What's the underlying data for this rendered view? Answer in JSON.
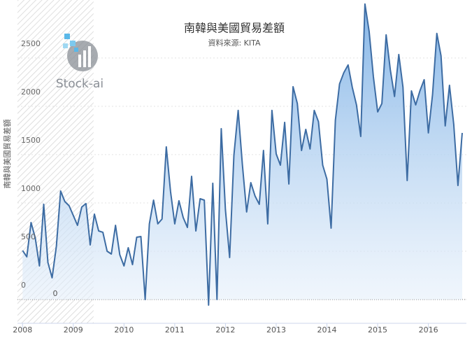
{
  "chart_data": {
    "type": "area",
    "title": "南韓與美國貿易差額",
    "subtitle": "資料來源: KITA",
    "y_axis_label": "南韓與美國貿易差額",
    "watermark": "Stock-ai",
    "x": [
      2008,
      2008.083,
      2008.167,
      2008.25,
      2008.333,
      2008.417,
      2008.5,
      2008.583,
      2008.667,
      2008.75,
      2008.833,
      2008.917,
      2009,
      2009.083,
      2009.167,
      2009.25,
      2009.333,
      2009.417,
      2009.5,
      2009.583,
      2009.667,
      2009.75,
      2009.833,
      2009.917,
      2010,
      2010.083,
      2010.167,
      2010.25,
      2010.333,
      2010.417,
      2010.5,
      2010.583,
      2010.667,
      2010.75,
      2010.833,
      2010.917,
      2011,
      2011.083,
      2011.167,
      2011.25,
      2011.333,
      2011.417,
      2011.5,
      2011.583,
      2011.667,
      2011.75,
      2011.833,
      2011.917,
      2012,
      2012.083,
      2012.167,
      2012.25,
      2012.333,
      2012.417,
      2012.5,
      2012.583,
      2012.667,
      2012.75,
      2012.833,
      2012.917,
      2013,
      2013.083,
      2013.167,
      2013.25,
      2013.333,
      2013.417,
      2013.5,
      2013.583,
      2013.667,
      2013.75,
      2013.833,
      2013.917,
      2014,
      2014.083,
      2014.167,
      2014.25,
      2014.333,
      2014.417,
      2014.5,
      2014.583,
      2014.667,
      2014.75,
      2014.833,
      2014.917,
      2015,
      2015.083,
      2015.167,
      2015.25,
      2015.333,
      2015.417,
      2015.5,
      2015.583,
      2015.667,
      2015.75,
      2015.833,
      2015.917,
      2016,
      2016.083,
      2016.167,
      2016.25,
      2016.333,
      2016.417,
      2016.5,
      2016.583,
      2016.667
    ],
    "values": [
      507,
      442,
      797,
      638,
      348,
      986,
      384,
      225,
      551,
      1123,
      1014,
      971,
      870,
      768,
      957,
      993,
      565,
      884,
      710,
      696,
      500,
      471,
      768,
      464,
      348,
      536,
      362,
      645,
      652,
      0,
      783,
      1029,
      783,
      833,
      1580,
      1116,
      783,
      1022,
      848,
      746,
      1275,
      710,
      1043,
      1029,
      -58,
      1203,
      0,
      1768,
      928,
      435,
      1493,
      1957,
      1399,
      906,
      1210,
      1072,
      986,
      1543,
      783,
      1957,
      1507,
      1391,
      1833,
      1196,
      2203,
      2029,
      1543,
      1761,
      1558,
      1957,
      1841,
      1391,
      1246,
      739,
      1855,
      2232,
      2348,
      2428,
      2196,
      2014,
      1688,
      3058,
      2775,
      2304,
      1942,
      2029,
      2739,
      2377,
      2101,
      2536,
      2196,
      1232,
      2159,
      2014,
      2159,
      2275,
      1725,
      2124,
      2754,
      2522,
      1797,
      2217,
      1812,
      1181,
      1725
    ],
    "color": "#3d6ca3",
    "xlim": [
      2007.9,
      2016.75
    ],
    "xticks": [
      2008,
      2009,
      2010,
      2011,
      2012,
      2013,
      2014,
      2015,
      2016
    ],
    "ylim": [
      -246,
      3100
    ],
    "yticks": [
      0,
      500,
      1000,
      1500,
      2000,
      2500
    ],
    "plot_line": 0,
    "plot_band": [
      2007.9,
      2009.4
    ],
    "grid": true
  }
}
